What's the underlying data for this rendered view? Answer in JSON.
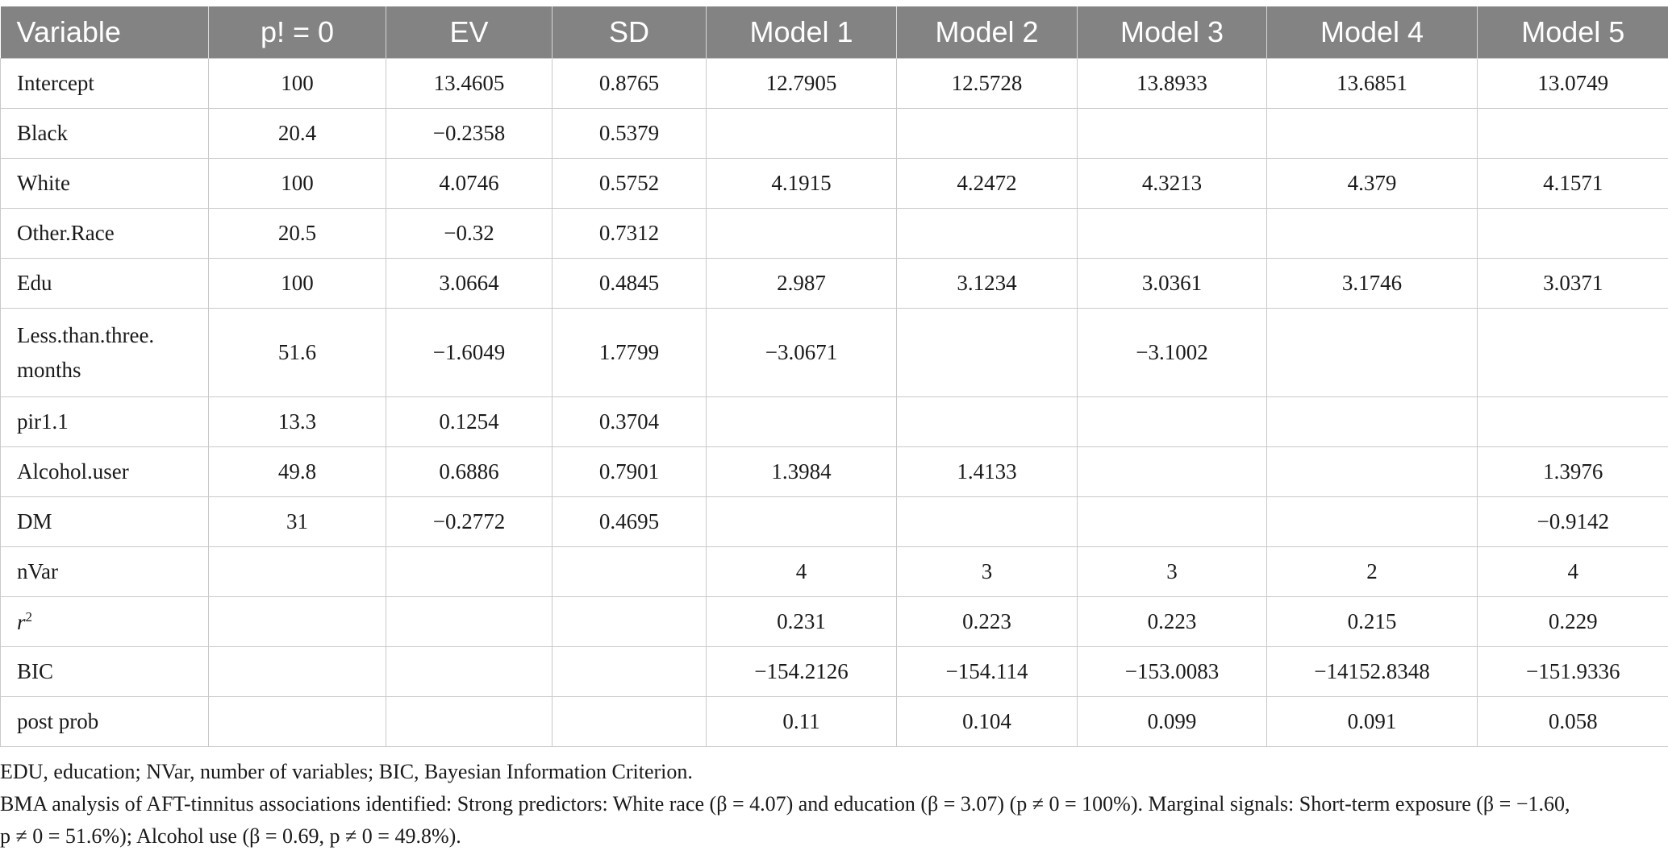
{
  "table": {
    "headers": [
      "Variable",
      "p! = 0",
      "EV",
      "SD",
      "Model 1",
      "Model 2",
      "Model 3",
      "Model 4",
      "Model 5"
    ],
    "rows": [
      [
        "Intercept",
        "100",
        "13.4605",
        "0.8765",
        "12.7905",
        "12.5728",
        "13.8933",
        "13.6851",
        "13.0749"
      ],
      [
        "Black",
        "20.4",
        "−0.2358",
        "0.5379",
        "",
        "",
        "",
        "",
        ""
      ],
      [
        "White",
        "100",
        "4.0746",
        "0.5752",
        "4.1915",
        "4.2472",
        "4.3213",
        "4.379",
        "4.1571"
      ],
      [
        "Other.Race",
        "20.5",
        "−0.32",
        "0.7312",
        "",
        "",
        "",
        "",
        ""
      ],
      [
        "Edu",
        "100",
        "3.0664",
        "0.4845",
        "2.987",
        "3.1234",
        "3.0361",
        "3.1746",
        "3.0371"
      ],
      [
        "Less.than.three.",
        "51.6",
        "−1.6049",
        "1.7799",
        "−3.0671",
        "",
        "−3.1002",
        "",
        ""
      ],
      [
        "pir1.1",
        "13.3",
        "0.1254",
        "0.3704",
        "",
        "",
        "",
        "",
        ""
      ],
      [
        "Alcohol.user",
        "49.8",
        "0.6886",
        "0.7901",
        "1.3984",
        "1.4133",
        "",
        "",
        "1.3976"
      ],
      [
        "DM",
        "31",
        "−0.2772",
        "0.4695",
        "",
        "",
        "",
        "",
        "−0.9142"
      ],
      [
        "nVar",
        "",
        "",
        "",
        "4",
        "3",
        "3",
        "2",
        "4"
      ],
      [
        "r",
        "",
        "",
        "",
        "0.231",
        "0.223",
        "0.223",
        "0.215",
        "0.229"
      ],
      [
        "BIC",
        "",
        "",
        "",
        "−154.2126",
        "−154.114",
        "−153.0083",
        "−14152.8348",
        "−151.9336"
      ],
      [
        "post prob",
        "",
        "",
        "",
        "0.11",
        "0.104",
        "0.099",
        "0.091",
        "0.058"
      ]
    ],
    "row_label_line2": "months",
    "r_superscript": "2"
  },
  "notes": {
    "line1": "EDU, education; NVar, number of variables; BIC, Bayesian Information Criterion.",
    "line2": "BMA analysis of AFT-tinnitus associations identified: Strong predictors: White race (β = 4.07) and education (β = 3.07) (p ≠ 0 = 100%). Marginal signals: Short-term exposure (β = −1.60,",
    "line3": "p ≠ 0 = 51.6%); Alcohol use (β = 0.69, p ≠ 0 = 49.8%)."
  }
}
